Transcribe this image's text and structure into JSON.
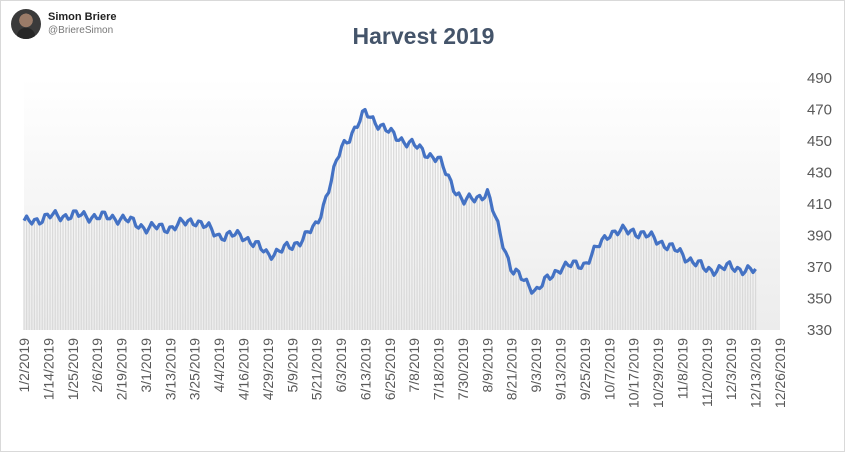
{
  "author": {
    "name": "Simon Briere",
    "handle": "@BriereSimon"
  },
  "chart_data": {
    "type": "area",
    "title": "Harvest 2019",
    "xlabel": "",
    "ylabel": "",
    "ylim": [
      330,
      490
    ],
    "yticks": [
      330,
      350,
      370,
      390,
      410,
      430,
      450,
      470,
      490
    ],
    "y_axis_position": "right",
    "grid": false,
    "legend": "none",
    "line_color": "#4472c4",
    "fill_color": "#d9d9d9",
    "xtick_labels": [
      "1/2/2019",
      "1/14/2019",
      "1/25/2019",
      "2/6/2019",
      "2/19/2019",
      "3/1/2019",
      "3/13/2019",
      "3/25/2019",
      "4/4/2019",
      "4/16/2019",
      "4/29/2019",
      "5/9/2019",
      "5/21/2019",
      "6/3/2019",
      "6/13/2019",
      "6/25/2019",
      "7/8/2019",
      "7/18/2019",
      "7/30/2019",
      "8/9/2019",
      "8/21/2019",
      "9/3/2019",
      "9/13/2019",
      "9/25/2019",
      "10/7/2019",
      "10/17/2019",
      "10/29/2019",
      "11/8/2019",
      "11/20/2019",
      "12/3/2019",
      "12/13/2019",
      "12/26/2019"
    ],
    "series": [
      {
        "x": [
          "1/2/2019",
          "1/14/2019",
          "1/25/2019",
          "2/6/2019",
          "2/19/2019",
          "3/1/2019",
          "3/13/2019",
          "3/25/2019",
          "4/4/2019",
          "4/16/2019",
          "4/29/2019",
          "5/9/2019",
          "5/21/2019",
          "6/3/2019",
          "6/13/2019",
          "6/25/2019",
          "7/8/2019",
          "7/18/2019",
          "7/30/2019",
          "8/9/2019",
          "8/21/2019",
          "9/3/2019",
          "9/13/2019",
          "9/25/2019",
          "10/7/2019",
          "10/17/2019",
          "10/29/2019",
          "11/8/2019",
          "11/20/2019",
          "12/3/2019",
          "12/13/2019"
        ],
        "y": [
          398,
          402,
          403,
          402,
          401,
          395,
          395,
          400,
          390,
          390,
          378,
          383,
          396,
          445,
          468,
          455,
          447,
          438,
          411,
          417,
          368,
          355,
          370,
          372,
          392,
          393,
          387,
          378,
          368,
          370,
          367
        ]
      }
    ]
  }
}
